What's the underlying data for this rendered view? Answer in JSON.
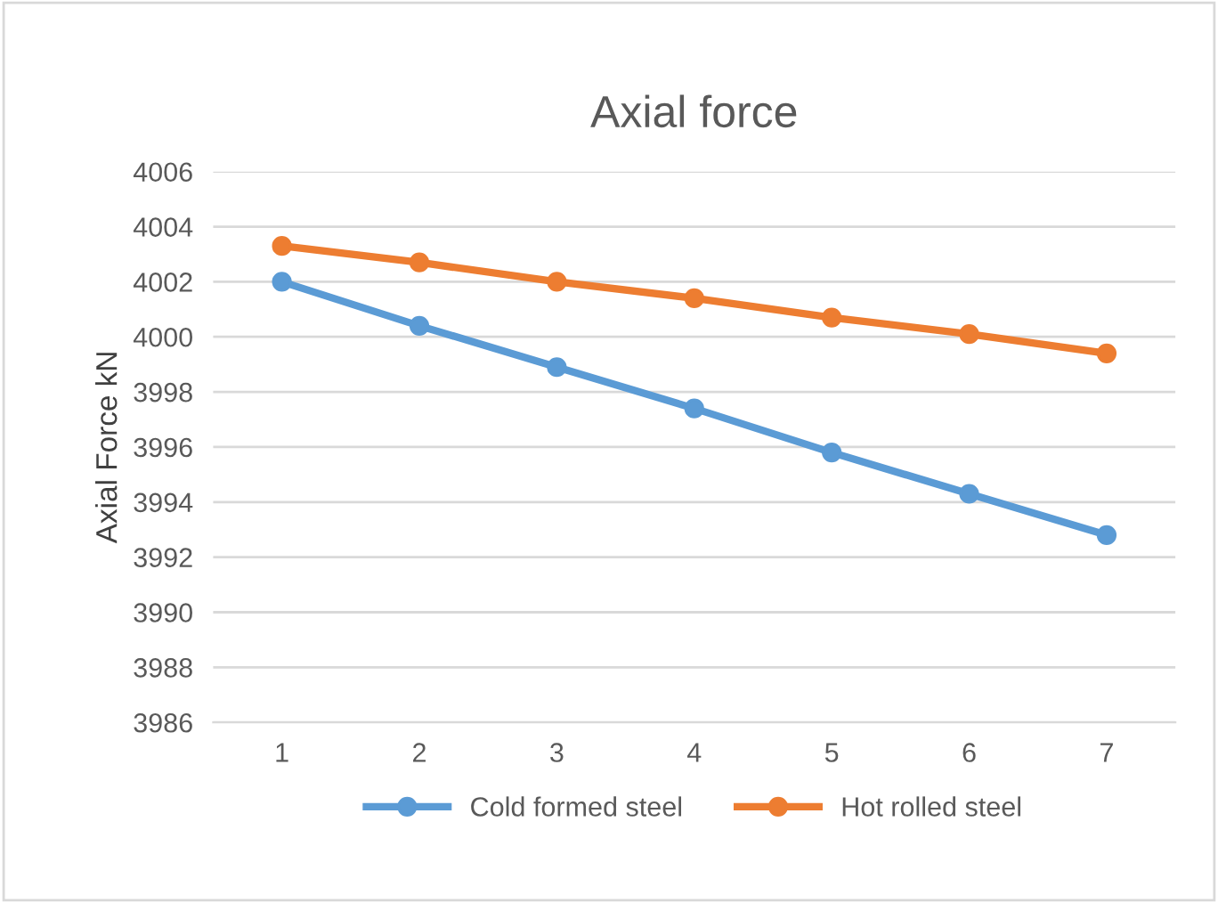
{
  "chart_data": {
    "type": "line",
    "title": "Axial force",
    "ylabel": "Axial Force kN",
    "categories": [
      "1",
      "2",
      "3",
      "4",
      "5",
      "6",
      "7"
    ],
    "series": [
      {
        "name": "Cold formed steel",
        "color": "#5b9bd5",
        "values": [
          4002.0,
          4000.4,
          3998.9,
          3997.4,
          3995.8,
          3994.3,
          3992.8
        ]
      },
      {
        "name": "Hot rolled steel",
        "color": "#ed7d31",
        "values": [
          4003.3,
          4002.7,
          4002.0,
          4001.4,
          4000.7,
          4000.1,
          3999.4
        ]
      }
    ],
    "ylim": [
      3986,
      4006
    ],
    "yticks": [
      3986,
      3988,
      3990,
      3992,
      3994,
      3996,
      3998,
      4000,
      4002,
      4004,
      4006
    ],
    "grid": "y",
    "legend": "bottom",
    "marker": "circle",
    "line_style": "solid"
  }
}
